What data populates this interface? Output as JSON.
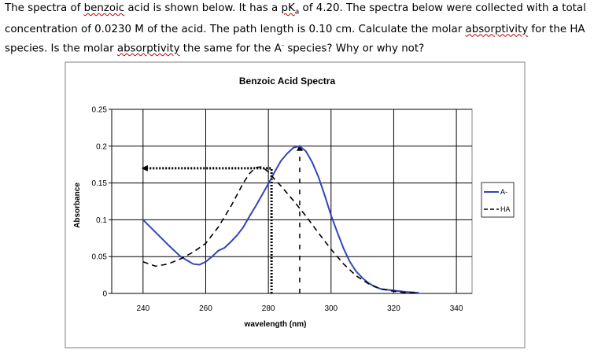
{
  "question": {
    "s1": "The spectra of ",
    "w_benzoic": "benzoic",
    "s2": " acid is shown below. It has a ",
    "w_pk": "pK",
    "w_pk_sub": "a",
    "s3": " of 4.20. The spectra below were collected with a total concentration of 0.0230 M of the acid. The path length is 0.10 cm. Calculate the molar ",
    "w_abs1": "absorptivity",
    "s4": " for the HA species. Is the molar ",
    "w_abs2": "absorptivity",
    "s5": " the same for the A",
    "s5_sup": "-",
    "s6": " species? Why or why not?"
  },
  "colors": {
    "a_minus": "#3344bb",
    "ha": "#000000",
    "plot_bg": "#ffffff",
    "frame": "#7f7f7f",
    "grid": "#000000"
  },
  "chart_data": {
    "type": "line",
    "title": "Benzoic Acid Spectra",
    "xlabel": "wavelength (nm)",
    "ylabel": "Absorbance",
    "xlim": [
      230,
      345
    ],
    "ylim": [
      0,
      0.25
    ],
    "x_ticks": [
      240,
      260,
      280,
      300,
      320,
      340
    ],
    "y_ticks": [
      0,
      0.05,
      0.1,
      0.15,
      0.2,
      0.25
    ],
    "y_tick_labels": [
      "0",
      "0.05",
      "0.1",
      "0.15",
      "0.2",
      "0.25"
    ],
    "grid": true,
    "legend": "right",
    "series": [
      {
        "name": "A-",
        "style": "solid",
        "x": [
          240,
          244,
          248,
          252,
          254,
          256,
          258,
          260,
          262,
          264,
          266,
          268,
          270,
          272,
          274,
          276,
          278,
          280,
          282,
          284,
          286,
          288,
          290,
          292,
          294,
          296,
          298,
          300,
          302,
          304,
          306,
          308,
          310,
          312,
          314,
          316,
          318,
          320,
          324,
          328
        ],
        "y": [
          0.1,
          0.083,
          0.066,
          0.05,
          0.045,
          0.04,
          0.039,
          0.043,
          0.05,
          0.058,
          0.062,
          0.07,
          0.079,
          0.09,
          0.105,
          0.119,
          0.134,
          0.149,
          0.165,
          0.18,
          0.19,
          0.198,
          0.2,
          0.193,
          0.178,
          0.158,
          0.133,
          0.106,
          0.083,
          0.061,
          0.043,
          0.03,
          0.021,
          0.014,
          0.009,
          0.006,
          0.005,
          0.004,
          0.002,
          0.001
        ]
      },
      {
        "name": "HA",
        "style": "dashed",
        "x": [
          240,
          244,
          248,
          252,
          256,
          260,
          264,
          268,
          272,
          274,
          276,
          278,
          280,
          282,
          284,
          288,
          292,
          296,
          300,
          304,
          308,
          312,
          316,
          320,
          324,
          328
        ],
        "y": [
          0.043,
          0.037,
          0.04,
          0.047,
          0.056,
          0.068,
          0.09,
          0.118,
          0.15,
          0.163,
          0.171,
          0.172,
          0.165,
          0.155,
          0.146,
          0.126,
          0.105,
          0.082,
          0.06,
          0.04,
          0.024,
          0.013,
          0.006,
          0.003,
          0.001,
          0.001
        ]
      }
    ],
    "annotations": [
      {
        "type": "dotted_arrow",
        "points": [
          [
            281,
            0
          ],
          [
            281,
            0.17
          ],
          [
            240,
            0.17
          ]
        ]
      },
      {
        "type": "dashed_arrow",
        "points": [
          [
            290,
            0
          ],
          [
            290,
            0.2
          ]
        ]
      }
    ]
  }
}
